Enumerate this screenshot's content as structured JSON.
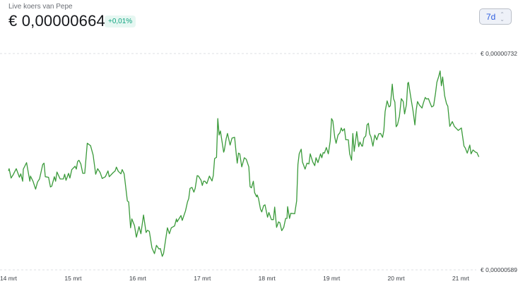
{
  "header": {
    "subtitle": "Live koers van Pepe",
    "price": "€ 0,00000664",
    "change": "+0,01%",
    "range_selector": "7d"
  },
  "colors": {
    "line": "#3a9a3a",
    "change_positive": "#10a37f",
    "accent": "#2f5fe0"
  },
  "chart_data": {
    "type": "line",
    "title": "",
    "xlabel": "",
    "ylabel": "",
    "x_tick_labels": [
      "14 mrt",
      "15 mrt",
      "16 mrt",
      "17 mrt",
      "18 mrt",
      "19 mrt",
      "20 mrt",
      "21 mrt"
    ],
    "x_ticks": [
      14,
      15,
      16,
      17,
      18,
      19,
      20,
      21
    ],
    "y_tick_labels": [
      "€ 0,00000732",
      "€ 0,00000589"
    ],
    "y_ticks": [
      7.32e-06,
      5.89e-06
    ],
    "ylim": [
      5.89e-06,
      7.32e-06
    ],
    "grid": "horizontal dashed at y ticks",
    "series": [
      {
        "points": [
          [
            14.0,
            6.544e-06
          ],
          [
            14.01,
            6.559e-06
          ],
          [
            14.04,
            6.497e-06
          ],
          [
            14.07,
            6.517e-06
          ],
          [
            14.12,
            6.559e-06
          ],
          [
            14.17,
            6.502e-06
          ],
          [
            14.19,
            6.525e-06
          ],
          [
            14.22,
            6.476e-06
          ],
          [
            14.23,
            6.556e-06
          ],
          [
            14.28,
            6.599e-06
          ],
          [
            14.33,
            6.476e-06
          ],
          [
            14.34,
            6.51e-06
          ],
          [
            14.38,
            6.476e-06
          ],
          [
            14.42,
            6.424e-06
          ],
          [
            14.45,
            6.471e-06
          ],
          [
            14.48,
            6.491e-06
          ],
          [
            14.53,
            6.587e-06
          ],
          [
            14.55,
            6.595e-06
          ],
          [
            14.57,
            6.506e-06
          ],
          [
            14.62,
            6.502e-06
          ],
          [
            14.65,
            6.438e-06
          ],
          [
            14.67,
            6.444e-06
          ],
          [
            14.71,
            6.506e-06
          ],
          [
            14.73,
            6.476e-06
          ],
          [
            14.75,
            6.537e-06
          ],
          [
            14.8,
            6.491e-06
          ],
          [
            14.85,
            6.491e-06
          ],
          [
            14.87,
            6.522e-06
          ],
          [
            14.89,
            6.482e-06
          ],
          [
            14.93,
            6.528e-06
          ],
          [
            14.95,
            6.497e-06
          ],
          [
            14.98,
            6.553e-06
          ],
          [
            15.03,
            6.575e-06
          ],
          [
            15.05,
            6.556e-06
          ],
          [
            15.07,
            6.606e-06
          ],
          [
            15.09,
            6.615e-06
          ],
          [
            15.12,
            6.59e-06
          ],
          [
            15.15,
            6.528e-06
          ],
          [
            15.18,
            6.528e-06
          ],
          [
            15.22,
            6.727e-06
          ],
          [
            15.27,
            6.711e-06
          ],
          [
            15.31,
            6.649e-06
          ],
          [
            15.35,
            6.522e-06
          ],
          [
            15.38,
            6.559e-06
          ],
          [
            15.42,
            6.533e-06
          ],
          [
            15.45,
            6.494e-06
          ],
          [
            15.5,
            6.506e-06
          ],
          [
            15.54,
            6.544e-06
          ],
          [
            15.56,
            6.506e-06
          ],
          [
            15.62,
            6.533e-06
          ],
          [
            15.65,
            6.544e-06
          ],
          [
            15.67,
            6.569e-06
          ],
          [
            15.7,
            6.541e-06
          ],
          [
            15.74,
            6.525e-06
          ],
          [
            15.76,
            6.553e-06
          ],
          [
            15.79,
            6.525e-06
          ],
          [
            15.84,
            6.346e-06
          ],
          [
            15.86,
            6.339e-06
          ],
          [
            15.89,
            6.168e-06
          ],
          [
            15.91,
            6.227e-06
          ],
          [
            15.95,
            6.183e-06
          ],
          [
            15.98,
            6.106e-06
          ],
          [
            16.02,
            6.176e-06
          ],
          [
            16.05,
            6.129e-06
          ],
          [
            16.09,
            6.253e-06
          ],
          [
            16.13,
            6.137e-06
          ],
          [
            16.15,
            6.152e-06
          ],
          [
            16.18,
            6.145e-06
          ],
          [
            16.22,
            6.036e-06
          ],
          [
            16.26,
            5.997e-06
          ],
          [
            16.29,
            6.052e-06
          ],
          [
            16.33,
            6.028e-06
          ],
          [
            16.35,
            6.031e-06
          ],
          [
            16.38,
            5.979e-06
          ],
          [
            16.4,
            5.997e-06
          ],
          [
            16.46,
            6.168e-06
          ],
          [
            16.49,
            6.129e-06
          ],
          [
            16.52,
            6.168e-06
          ],
          [
            16.57,
            6.18e-06
          ],
          [
            16.6,
            6.227e-06
          ],
          [
            16.61,
            6.207e-06
          ],
          [
            16.67,
            6.249e-06
          ],
          [
            16.69,
            6.217e-06
          ],
          [
            16.74,
            6.28e-06
          ],
          [
            16.77,
            6.339e-06
          ],
          [
            16.79,
            6.362e-06
          ],
          [
            16.81,
            6.429e-06
          ],
          [
            16.84,
            6.435e-06
          ],
          [
            16.87,
            6.404e-06
          ],
          [
            16.89,
            6.429e-06
          ],
          [
            16.92,
            6.513e-06
          ],
          [
            16.94,
            6.51e-06
          ],
          [
            16.98,
            6.482e-06
          ],
          [
            17.0,
            6.448e-06
          ],
          [
            17.02,
            6.476e-06
          ],
          [
            17.04,
            6.476e-06
          ],
          [
            17.07,
            6.46e-06
          ],
          [
            17.11,
            6.51e-06
          ],
          [
            17.15,
            6.478e-06
          ],
          [
            17.17,
            6.513e-06
          ],
          [
            17.19,
            6.626e-06
          ],
          [
            17.22,
            6.634e-06
          ],
          [
            17.24,
            6.89e-06
          ],
          [
            17.26,
            6.781e-06
          ],
          [
            17.28,
            6.808e-06
          ],
          [
            17.33,
            6.668e-06
          ],
          [
            17.34,
            6.68e-06
          ],
          [
            17.37,
            6.758e-06
          ],
          [
            17.39,
            6.792e-06
          ],
          [
            17.43,
            6.715e-06
          ],
          [
            17.46,
            6.761e-06
          ],
          [
            17.5,
            6.766e-06
          ],
          [
            17.53,
            6.637e-06
          ],
          [
            17.54,
            6.595e-06
          ],
          [
            17.56,
            6.662e-06
          ],
          [
            17.58,
            6.657e-06
          ],
          [
            17.61,
            6.571e-06
          ],
          [
            17.65,
            6.631e-06
          ],
          [
            17.68,
            6.621e-06
          ],
          [
            17.72,
            6.571e-06
          ],
          [
            17.74,
            6.44e-06
          ],
          [
            17.76,
            6.432e-06
          ],
          [
            17.79,
            6.476e-06
          ],
          [
            17.81,
            6.401e-06
          ],
          [
            17.84,
            6.373e-06
          ],
          [
            17.85,
            6.385e-06
          ],
          [
            17.87,
            6.362e-06
          ],
          [
            17.9,
            6.292e-06
          ],
          [
            17.92,
            6.273e-06
          ],
          [
            17.95,
            6.315e-06
          ],
          [
            17.97,
            6.32e-06
          ],
          [
            18.01,
            6.238e-06
          ],
          [
            18.03,
            6.269e-06
          ],
          [
            18.07,
            6.222e-06
          ],
          [
            18.1,
            6.222e-06
          ],
          [
            18.12,
            6.305e-06
          ],
          [
            18.15,
            6.171e-06
          ],
          [
            18.18,
            6.207e-06
          ],
          [
            18.2,
            6.202e-06
          ],
          [
            18.23,
            6.149e-06
          ],
          [
            18.26,
            6.171e-06
          ],
          [
            18.29,
            6.23e-06
          ],
          [
            18.31,
            6.23e-06
          ],
          [
            18.32,
            6.308e-06
          ],
          [
            18.35,
            6.23e-06
          ],
          [
            18.37,
            6.264e-06
          ],
          [
            18.43,
            6.261e-06
          ],
          [
            18.46,
            6.346e-06
          ],
          [
            18.48,
            6.587e-06
          ],
          [
            18.5,
            6.657e-06
          ],
          [
            18.53,
            6.688e-06
          ],
          [
            18.55,
            6.603e-06
          ],
          [
            18.59,
            6.556e-06
          ],
          [
            18.62,
            6.595e-06
          ],
          [
            18.65,
            6.59e-06
          ],
          [
            18.67,
            6.657e-06
          ],
          [
            18.71,
            6.603e-06
          ],
          [
            18.74,
            6.579e-06
          ],
          [
            18.76,
            6.631e-06
          ],
          [
            18.79,
            6.599e-06
          ],
          [
            18.83,
            6.657e-06
          ],
          [
            18.85,
            6.631e-06
          ],
          [
            18.87,
            6.665e-06
          ],
          [
            18.89,
            6.662e-06
          ],
          [
            18.92,
            6.699e-06
          ],
          [
            18.95,
            6.657e-06
          ],
          [
            18.98,
            6.742e-06
          ],
          [
            19.0,
            6.89e-06
          ],
          [
            19.02,
            6.874e-06
          ],
          [
            19.05,
            6.766e-06
          ],
          [
            19.07,
            6.727e-06
          ],
          [
            19.1,
            6.781e-06
          ],
          [
            19.13,
            6.797e-06
          ],
          [
            19.15,
            6.828e-06
          ],
          [
            19.17,
            6.808e-06
          ],
          [
            19.2,
            6.823e-06
          ],
          [
            19.22,
            6.75e-06
          ],
          [
            19.26,
            6.75e-06
          ],
          [
            19.28,
            6.657e-06
          ],
          [
            19.31,
            6.615e-06
          ],
          [
            19.33,
            6.792e-06
          ],
          [
            19.35,
            6.673e-06
          ],
          [
            19.39,
            6.804e-06
          ],
          [
            19.42,
            6.704e-06
          ],
          [
            19.44,
            6.735e-06
          ],
          [
            19.47,
            6.708e-06
          ],
          [
            19.48,
            6.708e-06
          ],
          [
            19.5,
            6.761e-06
          ],
          [
            19.53,
            6.776e-06
          ],
          [
            19.55,
            6.848e-06
          ],
          [
            19.57,
            6.859e-06
          ],
          [
            19.59,
            6.789e-06
          ],
          [
            19.61,
            6.77e-06
          ],
          [
            19.64,
            6.708e-06
          ],
          [
            19.67,
            6.781e-06
          ],
          [
            19.7,
            6.75e-06
          ],
          [
            19.73,
            6.789e-06
          ],
          [
            19.76,
            6.792e-06
          ],
          [
            19.79,
            6.766e-06
          ],
          [
            19.81,
            6.812e-06
          ],
          [
            19.83,
            6.937e-06
          ],
          [
            19.86,
            7.007e-06
          ],
          [
            19.89,
            6.967e-06
          ],
          [
            19.91,
            6.975e-06
          ],
          [
            19.94,
            7.118e-06
          ],
          [
            19.96,
            7.022e-06
          ],
          [
            19.98,
            6.999e-06
          ],
          [
            20.0,
            6.836e-06
          ],
          [
            20.02,
            6.848e-06
          ],
          [
            20.05,
            6.905e-06
          ],
          [
            20.08,
            7.022e-06
          ],
          [
            20.11,
            7.003e-06
          ],
          [
            20.13,
            6.921e-06
          ],
          [
            20.16,
            6.983e-06
          ],
          [
            20.18,
            7.123e-06
          ],
          [
            20.19,
            7.13e-06
          ],
          [
            20.23,
            7.022e-06
          ],
          [
            20.26,
            6.944e-06
          ],
          [
            20.29,
            6.848e-06
          ],
          [
            20.31,
            6.944e-06
          ],
          [
            20.33,
            7.003e-06
          ],
          [
            20.36,
            6.979e-06
          ],
          [
            20.4,
            6.96e-06
          ],
          [
            20.42,
            6.991e-06
          ],
          [
            20.45,
            7.03e-06
          ],
          [
            20.47,
            7.019e-06
          ],
          [
            20.5,
            7.022e-06
          ],
          [
            20.52,
            6.999e-06
          ],
          [
            20.55,
            6.967e-06
          ],
          [
            20.58,
            6.975e-06
          ],
          [
            20.61,
            7.061e-06
          ],
          [
            20.63,
            7.13e-06
          ],
          [
            20.66,
            7.17e-06
          ],
          [
            20.68,
            7.205e-06
          ],
          [
            20.7,
            7.107e-06
          ],
          [
            20.72,
            7.165e-06
          ],
          [
            20.75,
            7.041e-06
          ],
          [
            20.78,
            6.988e-06
          ],
          [
            20.8,
            6.972e-06
          ],
          [
            20.83,
            6.839e-06
          ],
          [
            20.87,
            6.87e-06
          ],
          [
            20.9,
            6.839e-06
          ],
          [
            20.96,
            6.812e-06
          ],
          [
            21.01,
            6.828e-06
          ],
          [
            21.05,
            6.708e-06
          ],
          [
            21.07,
            6.696e-06
          ],
          [
            21.1,
            6.662e-06
          ],
          [
            21.14,
            6.715e-06
          ],
          [
            21.16,
            6.657e-06
          ],
          [
            21.19,
            6.683e-06
          ],
          [
            21.23,
            6.668e-06
          ],
          [
            21.25,
            6.665e-06
          ],
          [
            21.28,
            6.637e-06
          ]
        ]
      }
    ]
  }
}
